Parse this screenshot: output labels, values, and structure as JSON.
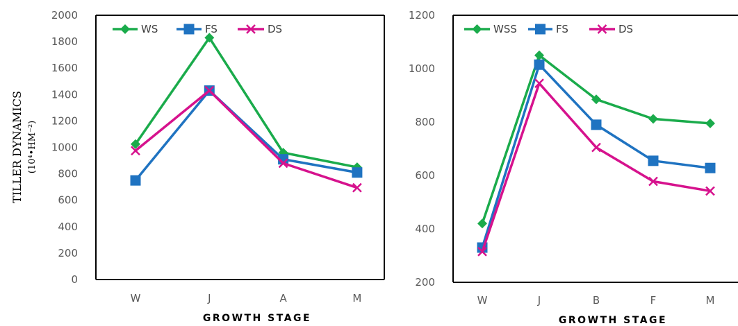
{
  "chart_data": [
    {
      "type": "line",
      "xlabel": "GROWTH STAGE",
      "ylabel": "TILLER DYNAMICS",
      "ylabel_unit": "(10⁴•HM⁻²)",
      "ylim": [
        0,
        2000
      ],
      "yticks": [
        0,
        200,
        400,
        600,
        800,
        1000,
        1200,
        1400,
        1600,
        1800,
        2000
      ],
      "categories": [
        "W",
        "J",
        "A",
        "M"
      ],
      "legend_position": "top-left",
      "grid": false,
      "series": [
        {
          "name": "WS",
          "color": "#1aab4b",
          "marker": "diamond",
          "values": [
            1025,
            1830,
            960,
            850
          ]
        },
        {
          "name": "FS",
          "color": "#1f73c1",
          "marker": "square",
          "values": [
            750,
            1430,
            910,
            810
          ]
        },
        {
          "name": "DS",
          "color": "#d6128d",
          "marker": "x",
          "values": [
            975,
            1430,
            880,
            695
          ]
        }
      ]
    },
    {
      "type": "line",
      "xlabel": "GROWTH STAGE",
      "ylim": [
        200,
        1200
      ],
      "yticks": [
        200,
        400,
        600,
        800,
        1000,
        1200
      ],
      "categories": [
        "W",
        "J",
        "B",
        "F",
        "M"
      ],
      "legend_position": "top-left",
      "grid": false,
      "series": [
        {
          "name": "WSS",
          "color": "#1aab4b",
          "marker": "diamond",
          "values": [
            420,
            1050,
            885,
            812,
            795
          ]
        },
        {
          "name": "FS",
          "color": "#1f73c1",
          "marker": "square",
          "values": [
            330,
            1015,
            790,
            655,
            628
          ]
        },
        {
          "name": "DS",
          "color": "#d6128d",
          "marker": "x",
          "values": [
            315,
            945,
            705,
            578,
            542
          ]
        }
      ]
    }
  ]
}
